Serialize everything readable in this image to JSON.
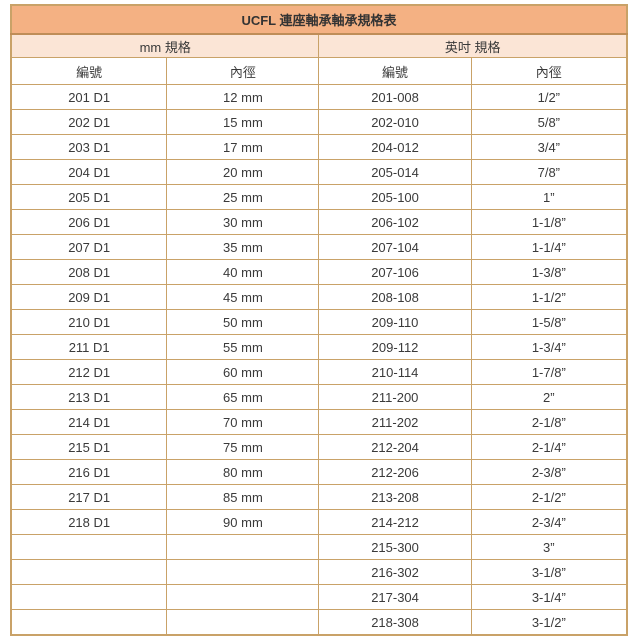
{
  "table": {
    "title": "UCFL 連座軸承軸承規格表",
    "section_headers": {
      "mm": "mm 規格",
      "inch": "英吋 規格"
    },
    "column_headers": [
      "編號",
      "內徑",
      "編號",
      "內徑"
    ],
    "rows": [
      [
        "201 D1",
        "12 mm",
        "201-008",
        "1/2”"
      ],
      [
        "202 D1",
        "15 mm",
        "202-010",
        "5/8”"
      ],
      [
        "203 D1",
        "17 mm",
        "204-012",
        "3/4”"
      ],
      [
        "204 D1",
        "20 mm",
        "205-014",
        "7/8”"
      ],
      [
        "205 D1",
        "25 mm",
        "205-100",
        "1”"
      ],
      [
        "206 D1",
        "30 mm",
        "206-102",
        "1-1/8”"
      ],
      [
        "207 D1",
        "35 mm",
        "207-104",
        "1-1/4”"
      ],
      [
        "208 D1",
        "40 mm",
        "207-106",
        "1-3/8”"
      ],
      [
        "209 D1",
        "45 mm",
        "208-108",
        "1-1/2”"
      ],
      [
        "210 D1",
        "50 mm",
        "209-110",
        "1-5/8”"
      ],
      [
        "211 D1",
        "55 mm",
        "209-112",
        "1-3/4”"
      ],
      [
        "212 D1",
        "60 mm",
        "210-114",
        "1-7/8”"
      ],
      [
        "213 D1",
        "65 mm",
        "211-200",
        "2”"
      ],
      [
        "214 D1",
        "70 mm",
        "211-202",
        "2-1/8”"
      ],
      [
        "215 D1",
        "75 mm",
        "212-204",
        "2-1/4”"
      ],
      [
        "216 D1",
        "80 mm",
        "212-206",
        "2-3/8”"
      ],
      [
        "217 D1",
        "85 mm",
        "213-208",
        "2-1/2”"
      ],
      [
        "218 D1",
        "90 mm",
        "214-212",
        "2-3/4”"
      ],
      [
        "",
        "",
        "215-300",
        "3”"
      ],
      [
        "",
        "",
        "216-302",
        "3-1/8”"
      ],
      [
        "",
        "",
        "217-304",
        "3-1/4”"
      ],
      [
        "",
        "",
        "218-308",
        "3-1/2”"
      ]
    ]
  },
  "colors": {
    "title_bg": "#F4B183",
    "section_bg": "#FBE5D6",
    "border": "#C9A268",
    "text": "#3A3A3A"
  }
}
